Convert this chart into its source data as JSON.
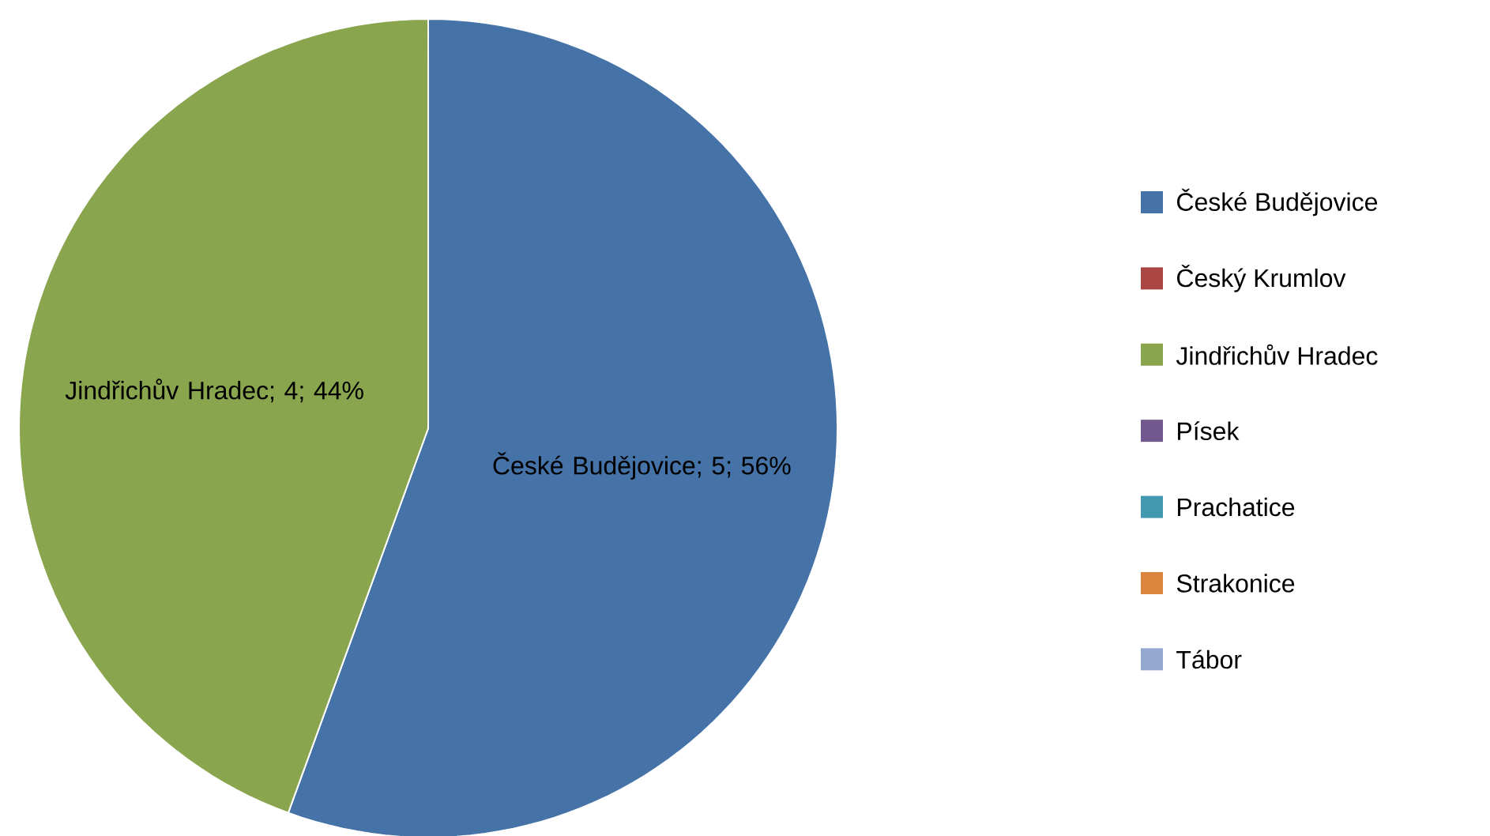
{
  "chart_data": {
    "type": "pie",
    "categories": [
      "České Budějovice",
      "Český Krumlov",
      "Jindřichův Hradec",
      "Písek",
      "Prachatice",
      "Strakonice",
      "Tábor"
    ],
    "values": [
      5,
      0,
      4,
      0,
      0,
      0,
      0
    ],
    "colors": [
      "#4572a7",
      "#aa4643",
      "#89a54e",
      "#71588f",
      "#4198af",
      "#db843d",
      "#93a9cf"
    ],
    "value_labels": [
      "České Budějovice; 5; 56%",
      null,
      "Jindřichův Hradec; 4; 44%",
      null,
      null,
      null,
      null
    ],
    "legend": "right"
  }
}
